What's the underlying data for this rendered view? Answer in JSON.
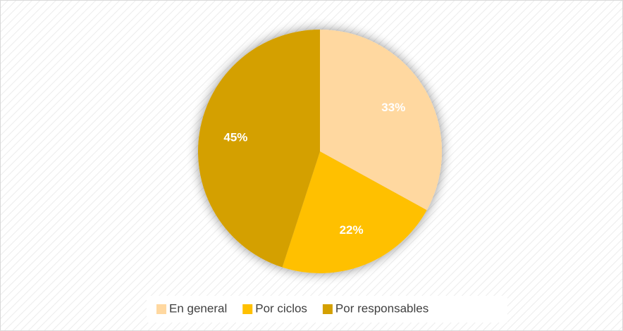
{
  "chart_data": {
    "type": "pie",
    "categories": [
      "En general",
      "Por ciclos",
      "Por responsables"
    ],
    "values": [
      33,
      22,
      45
    ],
    "value_labels": [
      "33%",
      "22%",
      "45%"
    ],
    "colors": [
      "#ffd8a0",
      "#ffc000",
      "#d4a000"
    ],
    "legend": "bottom"
  }
}
